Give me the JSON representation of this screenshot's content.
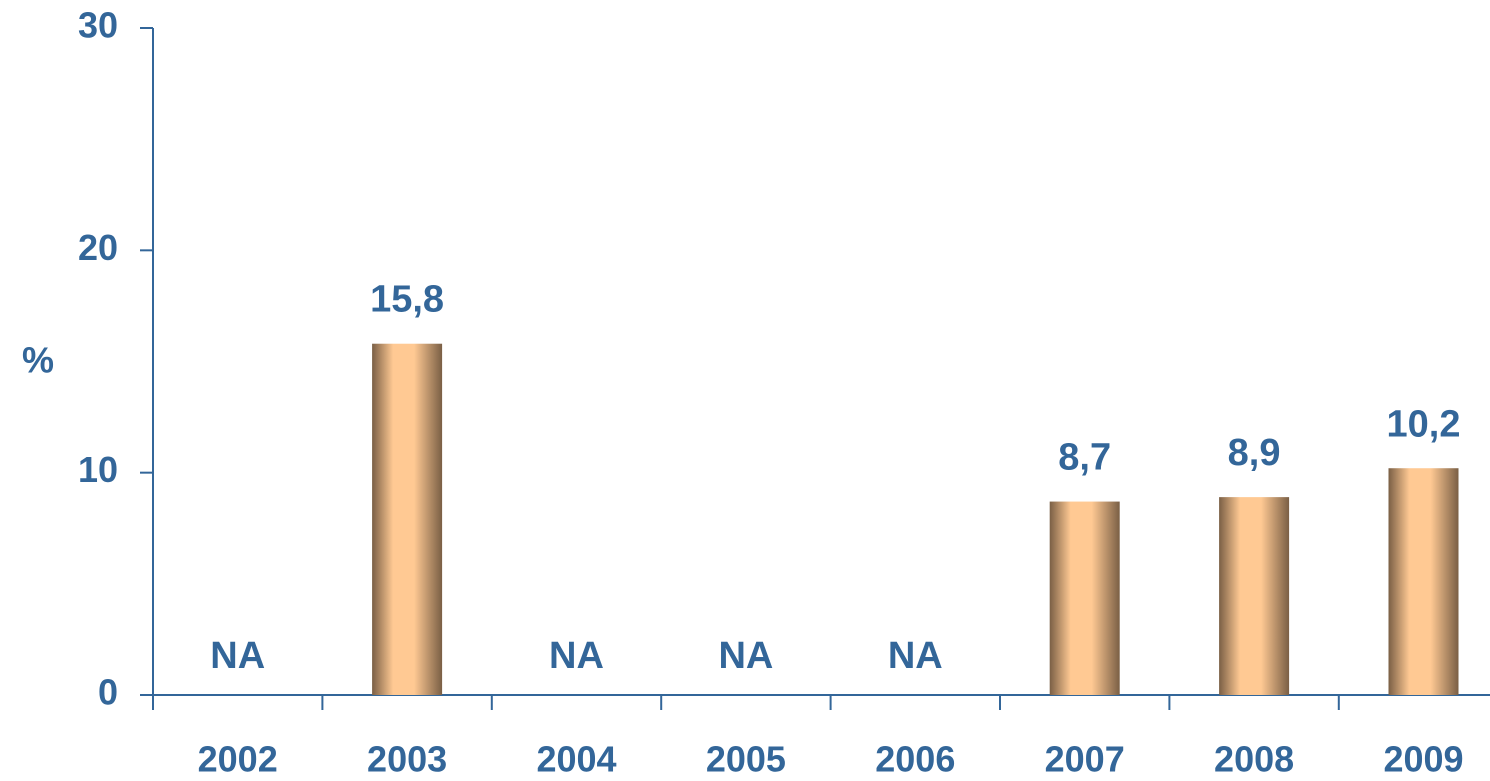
{
  "chart_data": {
    "type": "bar",
    "y_label": "%",
    "categories": [
      "2002",
      "2003",
      "2004",
      "2005",
      "2006",
      "2007",
      "2008",
      "2009"
    ],
    "values": [
      null,
      15.8,
      null,
      null,
      null,
      8.7,
      8.9,
      10.2
    ],
    "value_labels": [
      "NA",
      "15,8",
      "NA",
      "NA",
      "NA",
      "8,7",
      "8,9",
      "10,2"
    ],
    "color": "#ffc993",
    "ylim": [
      0,
      30
    ],
    "yticks": [
      0,
      10,
      20,
      30
    ],
    "grid": false
  }
}
